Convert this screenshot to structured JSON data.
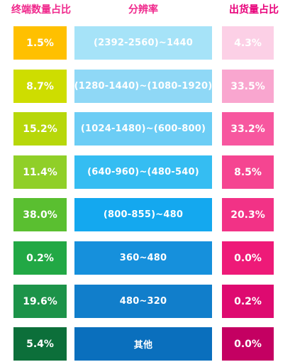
{
  "headers": {
    "left": "终端数量占比",
    "middle": "分辨率",
    "right": "出货量占比"
  },
  "chart_data": {
    "type": "table",
    "columns": [
      "终端数量占比",
      "分辨率",
      "出货量占比"
    ],
    "rows": [
      {
        "terminal": "1.5%",
        "resolution": "(2392-2560)~1440",
        "shipment": "4.3%",
        "colors": {
          "left": "#ffc000",
          "mid": "#a6e3f8",
          "right": "#fcd0e6"
        }
      },
      {
        "terminal": "8.7%",
        "resolution": "(1280-1440)~(1080-1920)",
        "shipment": "33.5%",
        "colors": {
          "left": "#cedd00",
          "mid": "#8fd8f6",
          "right": "#f9a6cf"
        }
      },
      {
        "terminal": "15.2%",
        "resolution": "(1024-1480)~(600-800)",
        "shipment": "33.2%",
        "colors": {
          "left": "#b7d70a",
          "mid": "#6ccdf5",
          "right": "#f7579f"
        }
      },
      {
        "terminal": "11.4%",
        "resolution": "(640-960)~(480-540)",
        "shipment": "8.5%",
        "colors": {
          "left": "#90cf28",
          "mid": "#35bdf2",
          "right": "#f54591"
        }
      },
      {
        "terminal": "38.0%",
        "resolution": "(800-855)~480",
        "shipment": "20.3%",
        "colors": {
          "left": "#5abf30",
          "mid": "#14a8ef",
          "right": "#f23286"
        }
      },
      {
        "terminal": "0.2%",
        "resolution": "360~480",
        "shipment": "0.0%",
        "colors": {
          "left": "#22a845",
          "mid": "#1690dc",
          "right": "#ee1a78"
        }
      },
      {
        "terminal": "19.6%",
        "resolution": "480~320",
        "shipment": "0.2%",
        "colors": {
          "left": "#1c9349",
          "mid": "#117ecb",
          "right": "#de0a70"
        }
      },
      {
        "terminal": "5.4%",
        "resolution": "其他",
        "shipment": "0.0%",
        "colors": {
          "left": "#0c6f3a",
          "mid": "#0a6fbd",
          "right": "#c40062"
        }
      }
    ]
  }
}
